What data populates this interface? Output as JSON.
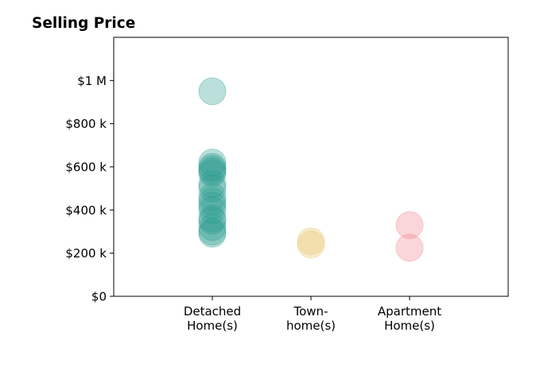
{
  "chart_data": {
    "type": "scatter",
    "title": "Selling Price",
    "xlabel": "",
    "ylabel": "",
    "categories": [
      [
        "Detached",
        "Home(s)"
      ],
      [
        "Town-",
        "home(s)"
      ],
      [
        "Apartment",
        "Home(s)"
      ]
    ],
    "xlim": [
      0,
      4
    ],
    "ylim": [
      0,
      1200000
    ],
    "yticks": [
      0,
      200000,
      400000,
      600000,
      800000,
      1000000
    ],
    "ytick_labels": [
      "$0",
      "$200 k",
      "$400 k",
      "$600 k",
      "$800 k",
      "$1 M"
    ],
    "grid": false,
    "series": [
      {
        "category_index": 0,
        "color": "#2a9d8f",
        "values": [
          950000,
          620000,
          600000,
          590000,
          580000,
          570000,
          520000,
          500000,
          460000,
          440000,
          420000,
          400000,
          360000,
          350000,
          320000,
          300000,
          290000
        ]
      },
      {
        "category_index": 1,
        "color": "#e9c46a",
        "values": [
          255000,
          240000
        ]
      },
      {
        "category_index": 2,
        "color": "#f07e8c",
        "values": [
          330000,
          225000
        ]
      }
    ]
  }
}
